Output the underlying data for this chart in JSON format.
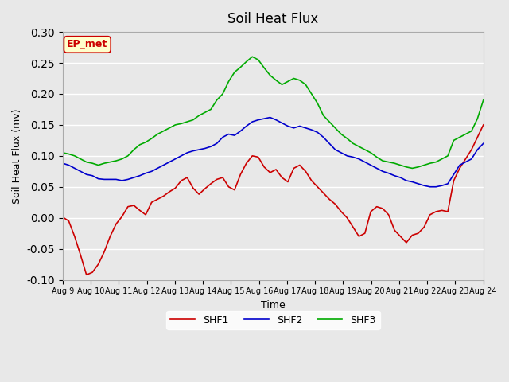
{
  "title": "Soil Heat Flux",
  "xlabel": "Time",
  "ylabel": "Soil Heat Flux (mv)",
  "ylim": [
    -0.1,
    0.3
  ],
  "yticks": [
    -0.1,
    -0.05,
    0.0,
    0.05,
    0.1,
    0.15,
    0.2,
    0.25,
    0.3
  ],
  "xtick_labels": [
    "Aug 9",
    "Aug 10",
    "Aug 11",
    "Aug 12",
    "Aug 13",
    "Aug 14",
    "Aug 15",
    "Aug 16",
    "Aug 17",
    "Aug 18",
    "Aug 19",
    "Aug 20",
    "Aug 21",
    "Aug 22",
    "Aug 23",
    "Aug 24"
  ],
  "legend_labels": [
    "SHF1",
    "SHF2",
    "SHF3"
  ],
  "colors": {
    "SHF1": "#cc0000",
    "SHF2": "#0000cc",
    "SHF3": "#00aa00"
  },
  "annotation_text": "EP_met",
  "annotation_color": "#cc0000",
  "annotation_bg": "#ffffcc",
  "background_color": "#e8e8e8",
  "plot_bg": "#e8e8e8",
  "grid_color": "#ffffff",
  "shf1": [
    0.001,
    -0.005,
    -0.03,
    -0.06,
    -0.092,
    -0.088,
    -0.075,
    -0.055,
    -0.03,
    -0.01,
    0.002,
    0.018,
    0.02,
    0.012,
    0.005,
    0.025,
    0.03,
    0.035,
    0.042,
    0.048,
    0.06,
    0.065,
    0.048,
    0.038,
    0.047,
    0.055,
    0.062,
    0.065,
    0.05,
    0.045,
    0.07,
    0.088,
    0.1,
    0.098,
    0.082,
    0.073,
    0.078,
    0.065,
    0.058,
    0.08,
    0.085,
    0.075,
    0.06,
    0.05,
    0.04,
    0.03,
    0.022,
    0.01,
    0.0,
    -0.015,
    -0.03,
    -0.025,
    0.01,
    0.018,
    0.015,
    0.005,
    -0.02,
    -0.03,
    -0.04,
    -0.028,
    -0.025,
    -0.015,
    0.005,
    0.01,
    0.012,
    0.01,
    0.06,
    0.08,
    0.095,
    0.11,
    0.13,
    0.15
  ],
  "shf2": [
    0.088,
    0.085,
    0.08,
    0.075,
    0.07,
    0.068,
    0.063,
    0.062,
    0.062,
    0.062,
    0.06,
    0.062,
    0.065,
    0.068,
    0.072,
    0.075,
    0.08,
    0.085,
    0.09,
    0.095,
    0.1,
    0.105,
    0.108,
    0.11,
    0.112,
    0.115,
    0.12,
    0.13,
    0.135,
    0.133,
    0.14,
    0.148,
    0.155,
    0.158,
    0.16,
    0.162,
    0.158,
    0.153,
    0.148,
    0.145,
    0.148,
    0.145,
    0.142,
    0.138,
    0.13,
    0.12,
    0.11,
    0.105,
    0.1,
    0.098,
    0.095,
    0.09,
    0.085,
    0.08,
    0.075,
    0.072,
    0.068,
    0.065,
    0.06,
    0.058,
    0.055,
    0.052,
    0.05,
    0.05,
    0.052,
    0.055,
    0.07,
    0.085,
    0.09,
    0.095,
    0.11,
    0.12
  ],
  "shf3": [
    0.105,
    0.103,
    0.1,
    0.095,
    0.09,
    0.088,
    0.085,
    0.088,
    0.09,
    0.092,
    0.095,
    0.1,
    0.11,
    0.118,
    0.122,
    0.128,
    0.135,
    0.14,
    0.145,
    0.15,
    0.152,
    0.155,
    0.158,
    0.165,
    0.17,
    0.175,
    0.19,
    0.2,
    0.22,
    0.235,
    0.243,
    0.252,
    0.26,
    0.255,
    0.242,
    0.23,
    0.222,
    0.215,
    0.22,
    0.225,
    0.222,
    0.215,
    0.2,
    0.185,
    0.165,
    0.155,
    0.145,
    0.135,
    0.128,
    0.12,
    0.115,
    0.11,
    0.105,
    0.098,
    0.092,
    0.09,
    0.088,
    0.085,
    0.082,
    0.08,
    0.082,
    0.085,
    0.088,
    0.09,
    0.095,
    0.1,
    0.125,
    0.13,
    0.135,
    0.14,
    0.16,
    0.19
  ],
  "n_points": 72
}
